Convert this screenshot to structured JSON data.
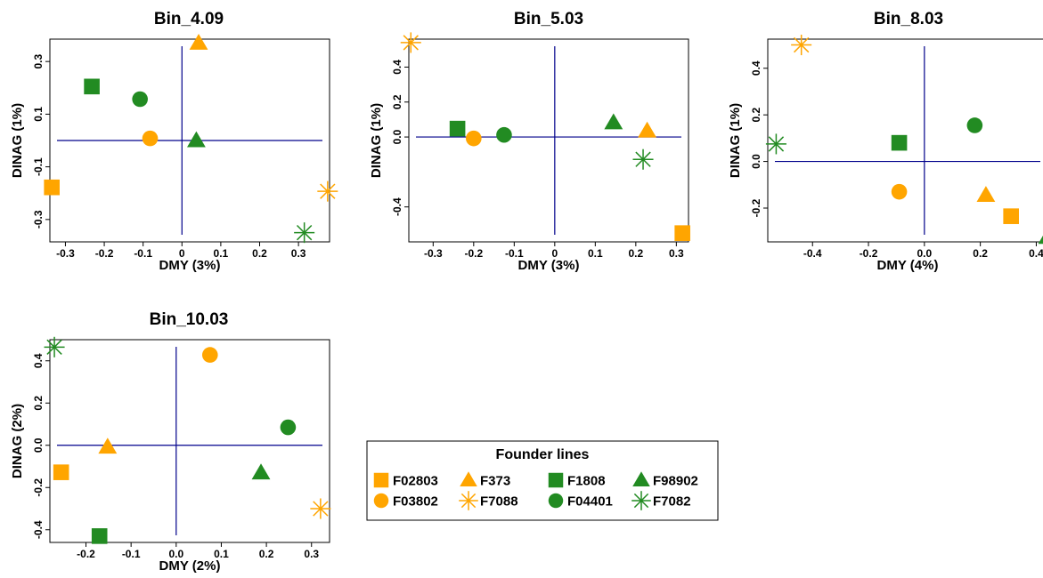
{
  "colors": {
    "orange": "#FFA500",
    "green": "#228B22",
    "refline": "#00008B"
  },
  "legend": {
    "title": "Founder   lines",
    "entries": [
      {
        "label": "F02803",
        "color": "orange",
        "shape": "square"
      },
      {
        "label": "F03802",
        "color": "orange",
        "shape": "circle"
      },
      {
        "label": "F373",
        "color": "orange",
        "shape": "triangle"
      },
      {
        "label": "F7088",
        "color": "orange",
        "shape": "asterisk"
      },
      {
        "label": "F1808",
        "color": "green",
        "shape": "square"
      },
      {
        "label": "F04401",
        "color": "green",
        "shape": "circle"
      },
      {
        "label": "F98902",
        "color": "green",
        "shape": "triangle"
      },
      {
        "label": "F7082",
        "color": "green",
        "shape": "asterisk"
      }
    ]
  },
  "chart_data": [
    {
      "type": "scatter",
      "title": "Bin_4.09",
      "xlabel": "DMY (3%)",
      "ylabel": "DINAG (1%)",
      "xlim": [
        -0.34,
        0.38
      ],
      "ylim": [
        -0.385,
        0.385
      ],
      "xticks": [
        "-0.3",
        "-0.2",
        "-0.1",
        "0",
        "0.1",
        "0.2",
        "0.3"
      ],
      "yticks": [
        "-0.3",
        "-0.1",
        "0.1",
        "0.3"
      ],
      "series": [
        {
          "name": "F02803",
          "x": -0.335,
          "y": -0.178
        },
        {
          "name": "F03802",
          "x": -0.082,
          "y": 0.008
        },
        {
          "name": "F373",
          "x": 0.043,
          "y": 0.37
        },
        {
          "name": "F7088",
          "x": 0.375,
          "y": -0.193
        },
        {
          "name": "F1808",
          "x": -0.232,
          "y": 0.205
        },
        {
          "name": "F04401",
          "x": -0.108,
          "y": 0.157
        },
        {
          "name": "F98902",
          "x": 0.037,
          "y": 0.0
        },
        {
          "name": "F7082",
          "x": 0.315,
          "y": -0.35
        }
      ]
    },
    {
      "type": "scatter",
      "title": "Bin_5.03",
      "xlabel": "DMY (3%)",
      "ylabel": "DINAG (1%)",
      "xlim": [
        -0.36,
        0.33
      ],
      "ylim": [
        -0.6,
        0.56
      ],
      "xticks": [
        "-0.3",
        "-0.2",
        "-0.1",
        "0",
        "0.1",
        "0.2",
        "0.3"
      ],
      "yticks": [
        "-0.4",
        "0.0",
        "0.2",
        "0.4"
      ],
      "series": [
        {
          "name": "F02803",
          "x": 0.315,
          "y": -0.55
        },
        {
          "name": "F03802",
          "x": -0.2,
          "y": -0.008
        },
        {
          "name": "F373",
          "x": 0.228,
          "y": 0.035
        },
        {
          "name": "F7088",
          "x": -0.355,
          "y": 0.54
        },
        {
          "name": "F1808",
          "x": -0.24,
          "y": 0.048
        },
        {
          "name": "F04401",
          "x": -0.125,
          "y": 0.012
        },
        {
          "name": "F98902",
          "x": 0.145,
          "y": 0.082
        },
        {
          "name": "F7082",
          "x": 0.218,
          "y": -0.128
        }
      ]
    },
    {
      "type": "scatter",
      "title": "Bin_8.03",
      "xlabel": "DMY (4%)",
      "ylabel": "DINAG (1%)",
      "xlim": [
        -0.56,
        0.44
      ],
      "ylim": [
        -0.345,
        0.525
      ],
      "xticks": [
        "-0.4",
        "-0.2",
        "0.0",
        "0.2",
        "0.4"
      ],
      "yticks": [
        "-0.2",
        "0.0",
        "0.2",
        "0.4"
      ],
      "series": [
        {
          "name": "F02803",
          "x": 0.31,
          "y": -0.235
        },
        {
          "name": "F03802",
          "x": -0.09,
          "y": -0.13
        },
        {
          "name": "F373",
          "x": 0.22,
          "y": -0.145
        },
        {
          "name": "F7088",
          "x": -0.44,
          "y": 0.5
        },
        {
          "name": "F1808",
          "x": -0.09,
          "y": 0.08
        },
        {
          "name": "F04401",
          "x": 0.18,
          "y": 0.155
        },
        {
          "name": "F98902",
          "x": 0.44,
          "y": -0.325
        },
        {
          "name": "F7082",
          "x": -0.53,
          "y": 0.075
        }
      ]
    },
    {
      "type": "scatter",
      "title": "Bin_10.03",
      "xlabel": "DMY (2%)",
      "ylabel": "DINAG (2%)",
      "xlim": [
        -0.28,
        0.34
      ],
      "ylim": [
        -0.46,
        0.5
      ],
      "xticks": [
        "-0.2",
        "-0.1",
        "0.0",
        "0.1",
        "0.2",
        "0.3"
      ],
      "yticks": [
        "-0.4",
        "-0.2",
        "0.0",
        "0.2",
        "0.4"
      ],
      "series": [
        {
          "name": "F02803",
          "x": -0.255,
          "y": -0.128
        },
        {
          "name": "F03802",
          "x": 0.075,
          "y": 0.428
        },
        {
          "name": "F373",
          "x": -0.152,
          "y": -0.008
        },
        {
          "name": "F7088",
          "x": 0.32,
          "y": -0.3
        },
        {
          "name": "F1808",
          "x": -0.17,
          "y": -0.43
        },
        {
          "name": "F04401",
          "x": 0.248,
          "y": 0.085
        },
        {
          "name": "F98902",
          "x": 0.188,
          "y": -0.13
        },
        {
          "name": "F7082",
          "x": -0.27,
          "y": 0.465
        }
      ]
    }
  ]
}
